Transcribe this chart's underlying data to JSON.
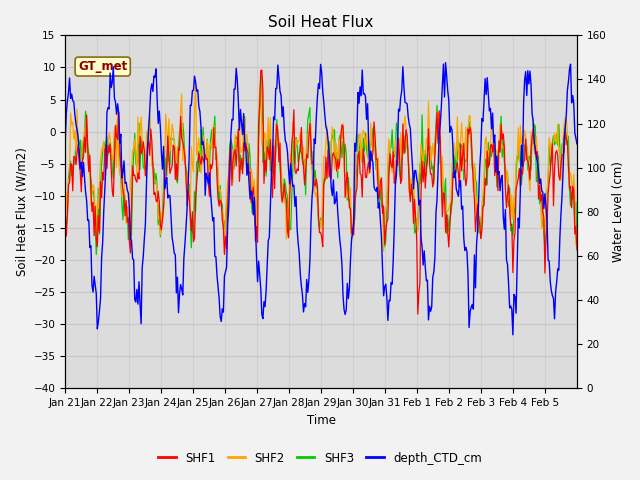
{
  "title": "Soil Heat Flux",
  "ylabel_left": "Soil Heat Flux (W/m2)",
  "ylabel_right": "Water Level (cm)",
  "xlabel": "Time",
  "ylim_left": [
    -40,
    15
  ],
  "ylim_right": [
    0,
    160
  ],
  "annotation_text": "GT_met",
  "annotation_color": "#8B0000",
  "annotation_bg": "#FFFFCC",
  "annotation_border": "#8B6914",
  "colors": {
    "SHF1": "#FF0000",
    "SHF2": "#FFA500",
    "SHF3": "#00CC00",
    "depth_CTD_cm": "#0000FF"
  },
  "grid_color": "#C8C8C8",
  "background_color": "#DCDCDC",
  "xtick_labels": [
    "Jan 21",
    "Jan 22",
    "Jan 23",
    "Jan 24",
    "Jan 25",
    "Jan 26",
    "Jan 27",
    "Jan 28",
    "Jan 29",
    "Jan 30",
    "Jan 31",
    "Feb 1",
    "Feb 2",
    "Feb 3",
    "Feb 4",
    "Feb 5"
  ],
  "yticks_left": [
    -40,
    -35,
    -30,
    -25,
    -20,
    -15,
    -10,
    -5,
    0,
    5,
    10,
    15
  ],
  "yticks_right": [
    0,
    20,
    40,
    60,
    80,
    100,
    120,
    140,
    160
  ],
  "n_points": 480,
  "figsize": [
    6.4,
    4.8
  ],
  "dpi": 100
}
